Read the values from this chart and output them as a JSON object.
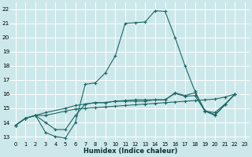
{
  "xlabel": "Humidex (Indice chaleur)",
  "bg_color": "#cde8ea",
  "grid_color": "#ffffff",
  "line_color": "#1a6868",
  "xlim": [
    -0.5,
    23.5
  ],
  "ylim": [
    12.7,
    22.5
  ],
  "xticks": [
    0,
    1,
    2,
    3,
    4,
    5,
    6,
    7,
    8,
    9,
    10,
    11,
    12,
    13,
    14,
    15,
    16,
    17,
    18,
    19,
    20,
    21,
    22,
    23
  ],
  "yticks": [
    13,
    14,
    15,
    16,
    17,
    18,
    19,
    20,
    21,
    22
  ],
  "series": [
    {
      "x": [
        0,
        1,
        2,
        3,
        4,
        5,
        6,
        7,
        8,
        9,
        10,
        11,
        12,
        13,
        14,
        15,
        16,
        17,
        18,
        19,
        20,
        21,
        22
      ],
      "y": [
        13.8,
        14.3,
        14.5,
        13.3,
        13.0,
        12.9,
        14.0,
        16.7,
        16.8,
        17.5,
        18.7,
        21.0,
        21.05,
        21.1,
        21.9,
        21.85,
        20.0,
        18.0,
        16.2,
        14.8,
        14.7,
        15.3,
        16.0
      ]
    },
    {
      "x": [
        0,
        1,
        2,
        3,
        5,
        6,
        7,
        8,
        9,
        10,
        11,
        12,
        13,
        14,
        15,
        16,
        17,
        18,
        19,
        20,
        21,
        22
      ],
      "y": [
        13.8,
        14.3,
        14.5,
        14.7,
        15.0,
        15.2,
        15.3,
        15.4,
        15.4,
        15.5,
        15.5,
        15.5,
        15.5,
        15.6,
        15.6,
        16.1,
        15.9,
        16.1,
        14.85,
        14.55,
        15.25,
        16.0
      ]
    },
    {
      "x": [
        0,
        1,
        2,
        3,
        5,
        6,
        7,
        8,
        9,
        10,
        11,
        12,
        13,
        14,
        15,
        16,
        17,
        18,
        19,
        20,
        21,
        22
      ],
      "y": [
        13.8,
        14.3,
        14.5,
        14.5,
        14.8,
        14.95,
        15.0,
        15.05,
        15.1,
        15.15,
        15.2,
        15.25,
        15.3,
        15.35,
        15.4,
        15.45,
        15.5,
        15.55,
        15.6,
        15.65,
        15.8,
        16.0
      ]
    },
    {
      "x": [
        0,
        1,
        2,
        3,
        4,
        5,
        6,
        7,
        8,
        9,
        10,
        11,
        12,
        13,
        14,
        15,
        16,
        17,
        18,
        19,
        20,
        21,
        22
      ],
      "y": [
        13.8,
        14.3,
        14.5,
        14.0,
        13.5,
        13.5,
        14.5,
        15.3,
        15.4,
        15.4,
        15.5,
        15.55,
        15.6,
        15.6,
        15.6,
        15.6,
        16.05,
        15.85,
        15.9,
        14.8,
        14.5,
        15.25,
        16.0
      ]
    }
  ]
}
